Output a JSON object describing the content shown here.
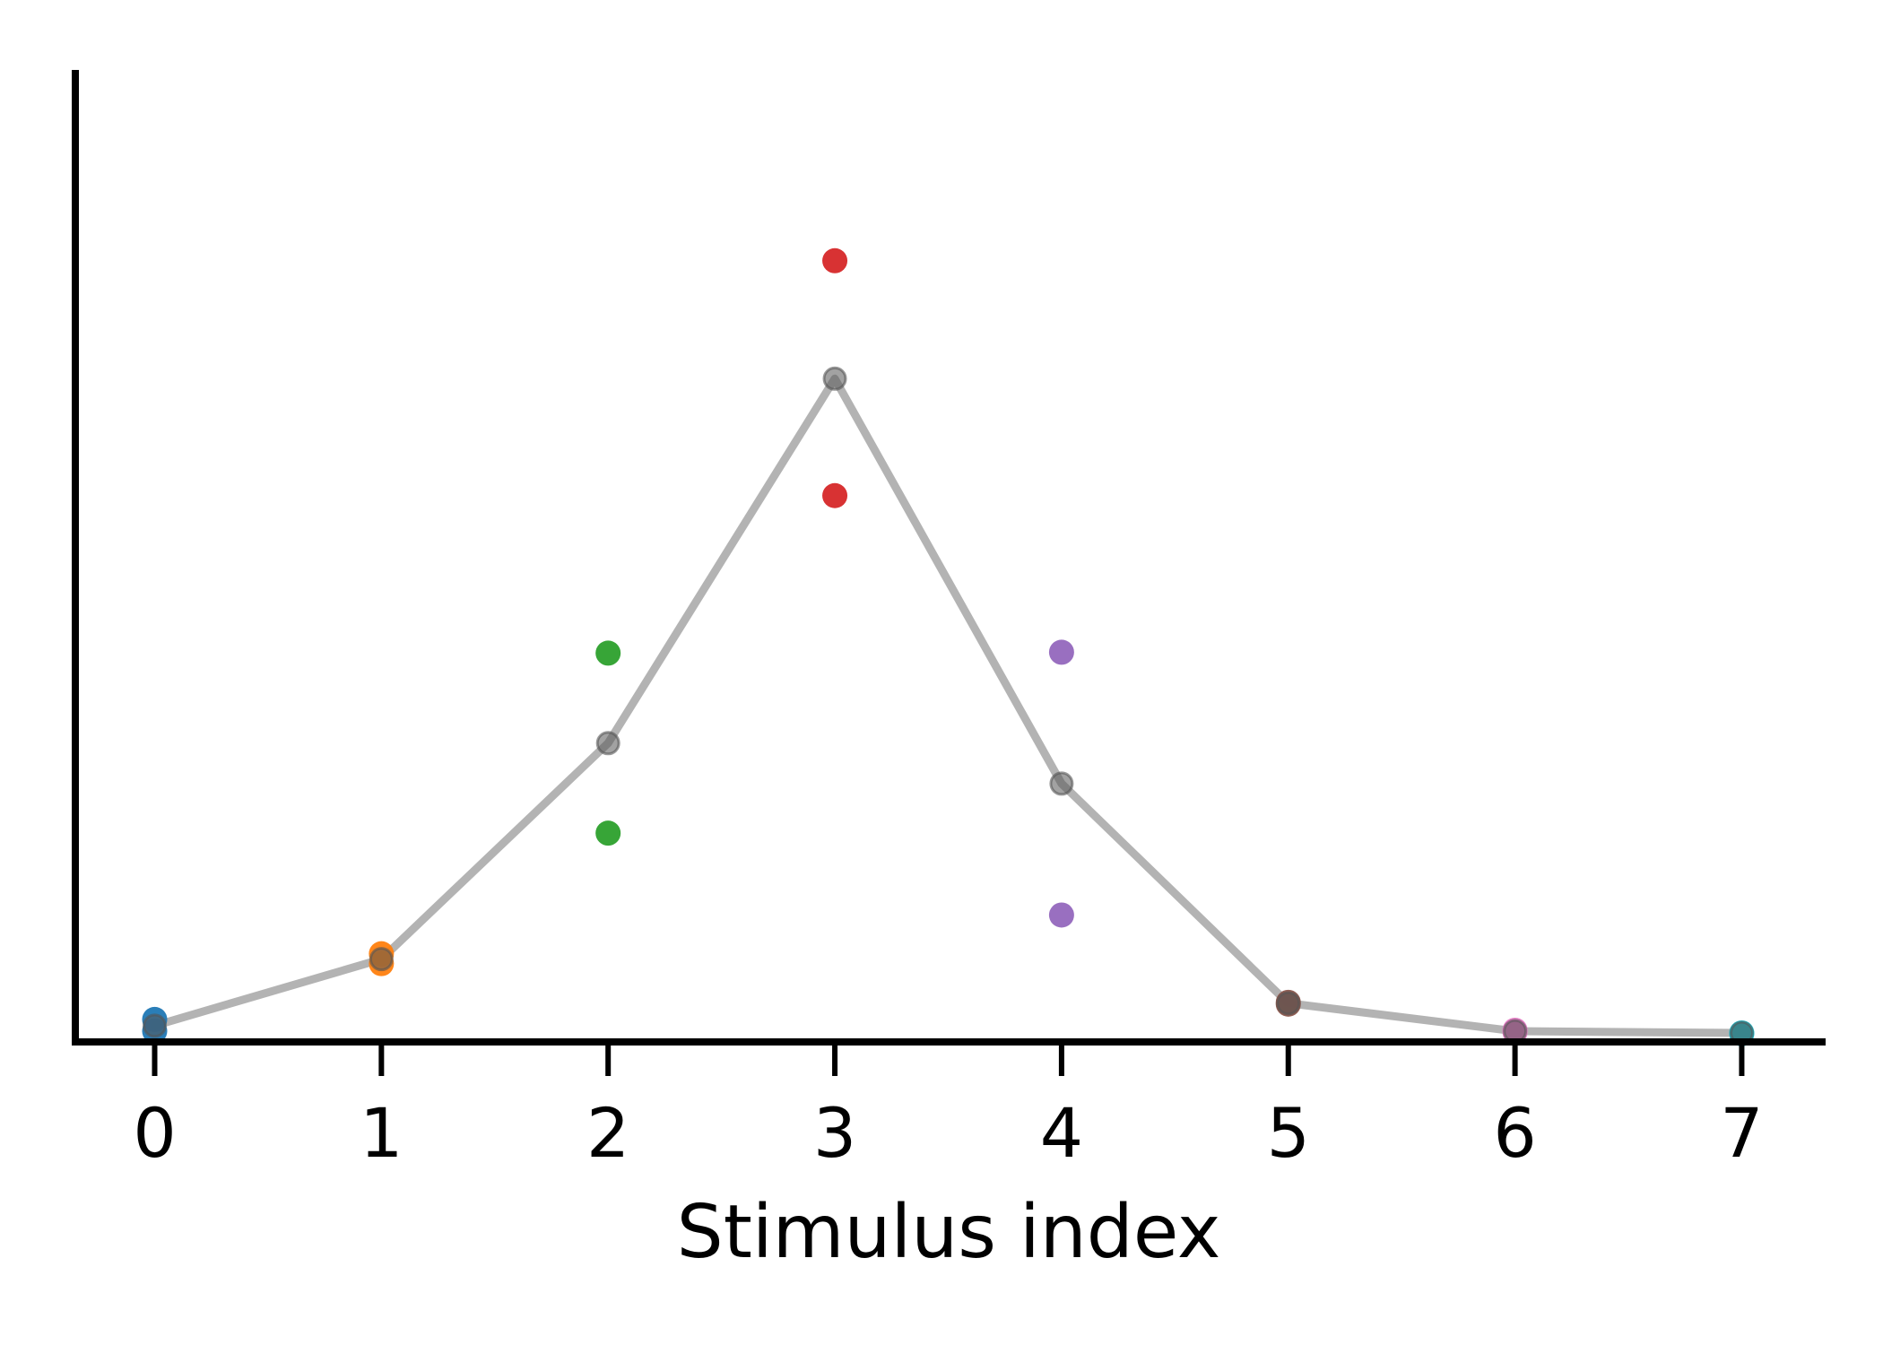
{
  "chart_data": {
    "type": "scatter",
    "title": "",
    "xlabel": "Stimulus index",
    "ylabel": "",
    "xlim": [
      -0.35,
      7.37
    ],
    "ylim": [
      0,
      1.08
    ],
    "x_ticks": [
      "0",
      "1",
      "2",
      "3",
      "4",
      "5",
      "6",
      "7"
    ],
    "y_ticks_shown": false,
    "grid": false,
    "legend": "none",
    "series": [
      {
        "kind": "points",
        "color": "#1f77b4",
        "points": [
          [
            0,
            0.025
          ],
          [
            0,
            0.012
          ]
        ]
      },
      {
        "kind": "points",
        "color": "#ff7f0e",
        "points": [
          [
            1,
            0.098
          ],
          [
            1,
            0.087
          ]
        ]
      },
      {
        "kind": "points",
        "color": "#2ca02c",
        "points": [
          [
            2,
            0.432
          ],
          [
            2,
            0.232
          ]
        ]
      },
      {
        "kind": "points",
        "color": "#d62728",
        "points": [
          [
            3,
            0.868
          ],
          [
            3,
            0.607
          ]
        ]
      },
      {
        "kind": "points",
        "color": "#9467bd",
        "points": [
          [
            4,
            0.433
          ],
          [
            4,
            0.141
          ]
        ]
      },
      {
        "kind": "points",
        "color": "#8c564b",
        "points": [
          [
            5,
            0.042
          ],
          [
            5,
            0.044
          ]
        ]
      },
      {
        "kind": "points",
        "color": "#e377c2",
        "points": [
          [
            6,
            0.011
          ],
          [
            6,
            0.013
          ]
        ]
      },
      {
        "kind": "points",
        "color": "#17becf",
        "points": [
          [
            7,
            0.009
          ],
          [
            7,
            0.01
          ]
        ]
      },
      {
        "kind": "mean-line",
        "color": "#b3b3b3",
        "marker_color": "#555555",
        "x": [
          0,
          1,
          2,
          3,
          4,
          5,
          6,
          7
        ],
        "y": [
          0.018,
          0.092,
          0.332,
          0.737,
          0.287,
          0.043,
          0.012,
          0.01
        ]
      }
    ]
  }
}
